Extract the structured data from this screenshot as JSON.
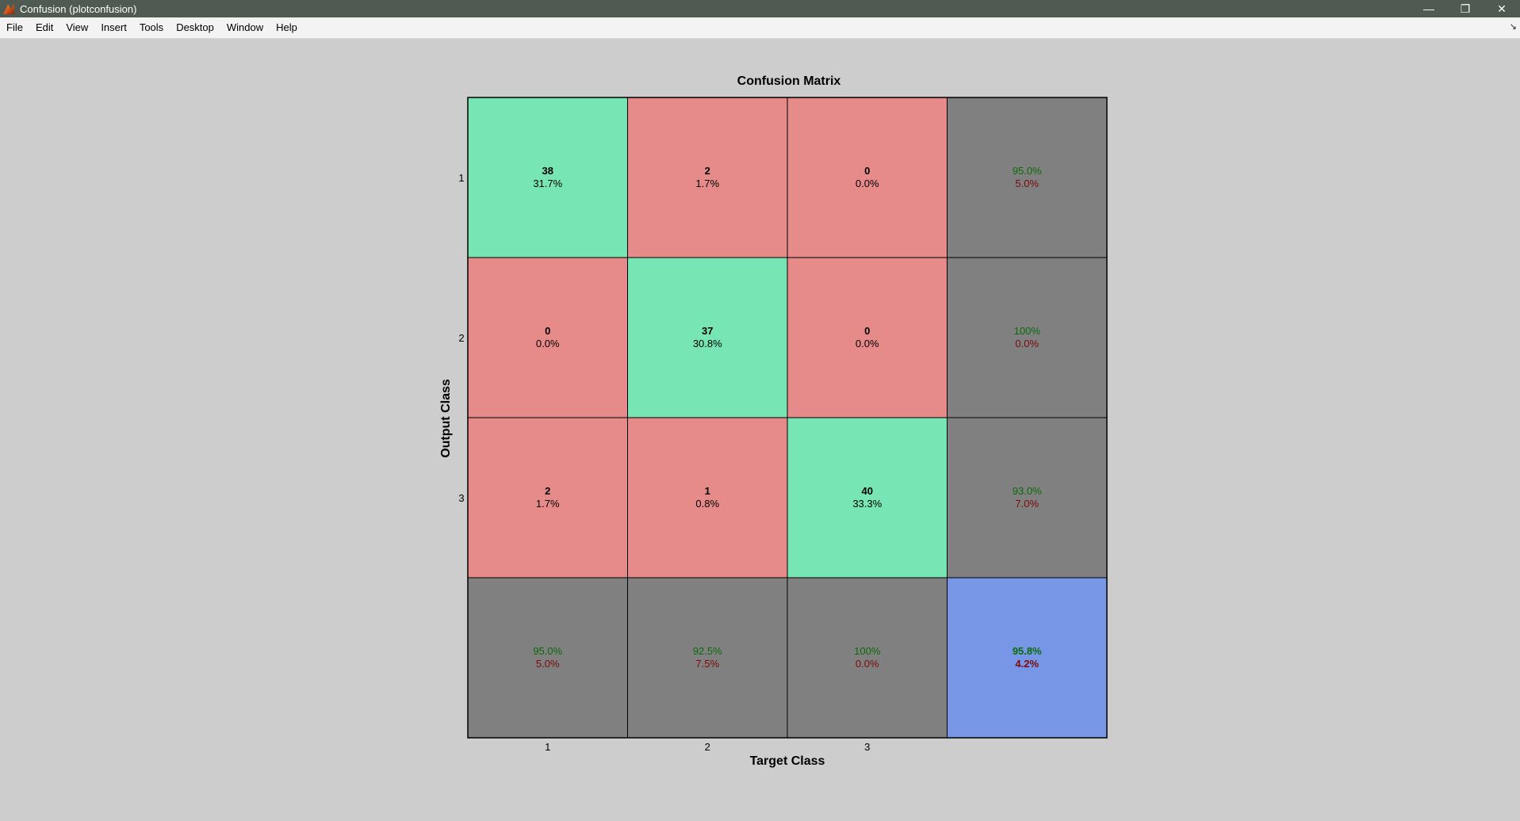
{
  "window": {
    "title": "Confusion (plotconfusion)",
    "minimize_glyph": "—",
    "maximize_glyph": "❐",
    "close_glyph": "✕"
  },
  "menu": {
    "items": [
      "File",
      "Edit",
      "View",
      "Insert",
      "Tools",
      "Desktop",
      "Window",
      "Help"
    ],
    "dock_arrow_glyph": "↘"
  },
  "colors": {
    "correct": "#78e6b4",
    "incorrect": "#e68a8a",
    "summary": "#808080",
    "overall": "#7896e6",
    "green_text": "#0a6a0a",
    "red_text": "#7a0a0a"
  },
  "chart_data": {
    "type": "heatmap",
    "title": "Confusion Matrix",
    "xlabel": "Target Class",
    "ylabel": "Output Class",
    "x_tick_labels": [
      "1",
      "2",
      "3"
    ],
    "y_tick_labels": [
      "1",
      "2",
      "3"
    ],
    "matrix_counts": [
      [
        38,
        2,
        0
      ],
      [
        0,
        37,
        0
      ],
      [
        2,
        1,
        40
      ]
    ],
    "matrix_percents": [
      [
        "31.7%",
        "1.7%",
        "0.0%"
      ],
      [
        "0.0%",
        "30.8%",
        "0.0%"
      ],
      [
        "1.7%",
        "0.8%",
        "33.3%"
      ]
    ],
    "row_summary": [
      [
        "95.0%",
        "5.0%"
      ],
      [
        "100%",
        "0.0%"
      ],
      [
        "93.0%",
        "7.0%"
      ]
    ],
    "column_summary": [
      [
        "95.0%",
        "5.0%"
      ],
      [
        "92.5%",
        "7.5%"
      ],
      [
        "100%",
        "0.0%"
      ]
    ],
    "overall": [
      "95.8%",
      "4.2%"
    ]
  }
}
